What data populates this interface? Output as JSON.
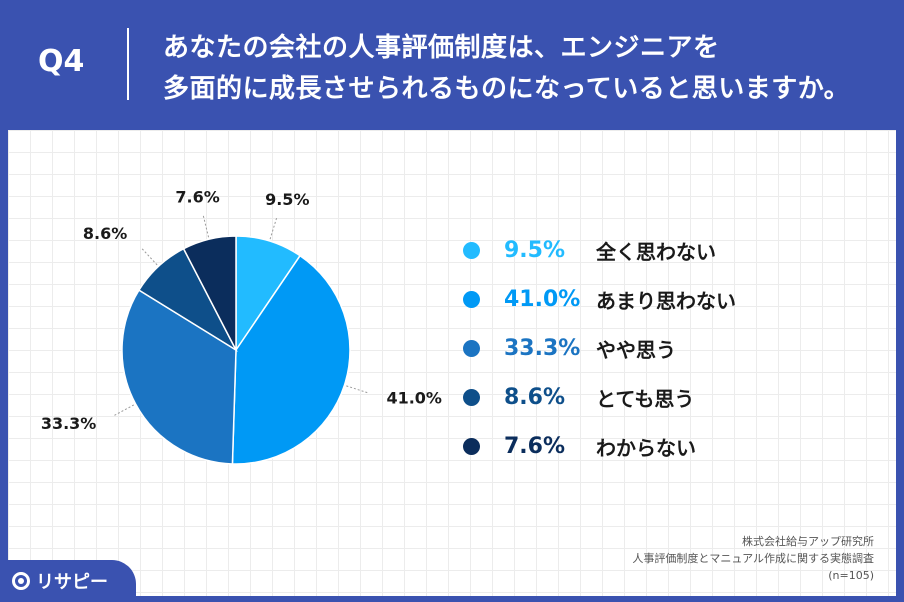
{
  "header": {
    "question_label": "Q4",
    "title_line1": "あなたの会社の人事評価制度は、エンジニアを",
    "title_line2": "多面的に成長させられるものになっていると思いますか。"
  },
  "chart_data": {
    "type": "pie",
    "title": "",
    "series": [
      {
        "label": "全く思わない",
        "value": 9.5,
        "display": "9.5%",
        "color": "#22bbff"
      },
      {
        "label": "あまり思わない",
        "value": 41.0,
        "display": "41.0%",
        "color": "#0099f5"
      },
      {
        "label": "やや思う",
        "value": 33.3,
        "display": "33.3%",
        "color": "#1b74c2"
      },
      {
        "label": "とても思う",
        "value": 8.6,
        "display": "8.6%",
        "color": "#0e4f8a"
      },
      {
        "label": "わからない",
        "value": 7.6,
        "display": "7.6%",
        "color": "#0b2d5c"
      }
    ],
    "start_angle_deg": 0,
    "direction": "clockwise",
    "legend_position": "right"
  },
  "source": {
    "line1": "株式会社給与アップ研究所",
    "line2": "人事評価制度とマニュアル作成に関する実態調査",
    "line3": "(n=105)"
  },
  "logo": {
    "text": "リサピー",
    "icon": "pin-icon"
  },
  "colors": {
    "brand": "#3a52b0",
    "panel": "#ffffff"
  }
}
